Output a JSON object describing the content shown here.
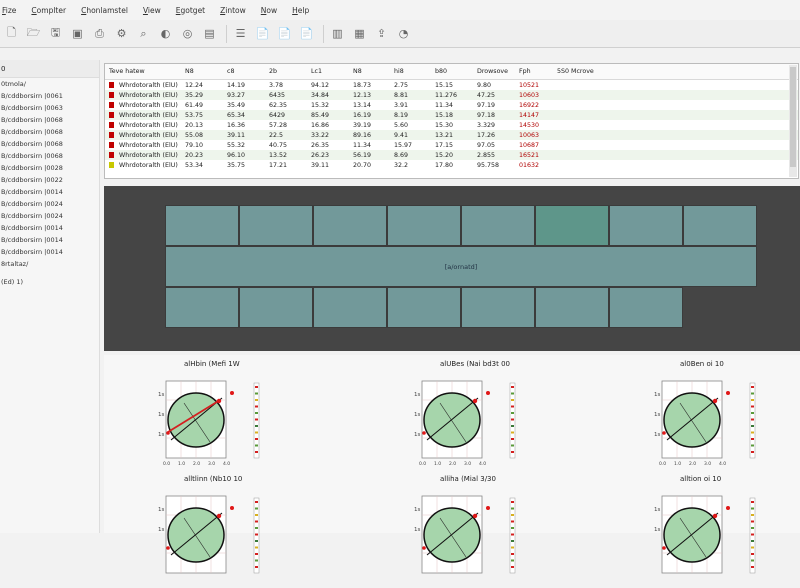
{
  "menu": [
    "Fize",
    "Complter",
    "Chonlamstel",
    "View",
    "Egotget",
    "Zintow",
    "Now",
    "Help"
  ],
  "toolbar_icons": [
    "new-doc-icon",
    "open-doc-icon",
    "save-doc-icon",
    "image-icon",
    "print-icon",
    "settings-icon",
    "zoom-icon",
    "color-icon",
    "target-icon",
    "page-icon",
    "list-icon",
    "doc-a-icon",
    "doc-b-icon",
    "doc-c-icon",
    "camera-icon",
    "chart-icon",
    "export-icon",
    "gauge-icon"
  ],
  "sidebar": {
    "header": "0",
    "items": [
      "0tmola/",
      "B/cddborsirn |0061",
      "B/cddborsirn |0063",
      "B/cddborsirn |0068",
      "B/cddborsirn |0068",
      "B/cddborsirn |0068",
      "B/cddborsirn |0068",
      "B/cddborsirn |0028",
      "B/cddborsirn |0022",
      "B/cddborsirn |0014",
      "B/cddborsirn |0024",
      "B/cddborsirn |0024",
      "B/cddborsirn |0014",
      "B/cddborsirn |0014",
      "B/cddborsirn |0014",
      "8rtaltaz/"
    ],
    "footer": "(Ed) 1)"
  },
  "table": {
    "headers": [
      "Teve hatew",
      "N8",
      "c8",
      "2b",
      "Lc1",
      "N8",
      "hi8",
      "b80",
      "Drowsove",
      "Fph",
      "5S0 Mcrove"
    ],
    "rows": [
      {
        "swatch": "#c00000",
        "name": "Whrdotoralth (ElU)",
        "v": [
          "12.24",
          "14.19",
          "3.78",
          "94.12",
          "18.73",
          "2.75",
          "15.15",
          "9.80",
          "10521"
        ]
      },
      {
        "swatch": "#c00000",
        "name": "Whrdotoralth (ElU)",
        "v": [
          "35.29",
          "93.27",
          "6435",
          "34.84",
          "12.13",
          "8.81",
          "11.276",
          "47.25",
          "10603"
        ]
      },
      {
        "swatch": "#c00000",
        "name": "Whrdotoralth (ElU)",
        "v": [
          "61.49",
          "35.49",
          "62.35",
          "15.32",
          "13.14",
          "3.91",
          "11.34",
          "97.19",
          "16922"
        ]
      },
      {
        "swatch": "#c00000",
        "name": "Whrdotoralth (ElU)",
        "v": [
          "53.75",
          "65.34",
          "6429",
          "85.49",
          "16.19",
          "8.19",
          "15.18",
          "97.18",
          "14147"
        ]
      },
      {
        "swatch": "#c00000",
        "name": "Whrdotoralth (ElU)",
        "v": [
          "20.13",
          "16.36",
          "57.28",
          "16.86",
          "39.19",
          "5.60",
          "15.30",
          "3.329",
          "14530"
        ]
      },
      {
        "swatch": "#c00000",
        "name": "Whrdotoralth (ElU)",
        "v": [
          "55.08",
          "39.11",
          "22.5",
          "33.22",
          "89.16",
          "9.41",
          "13.21",
          "17.26",
          "10063"
        ]
      },
      {
        "swatch": "#c00000",
        "name": "Whrdotoralth (ElU)",
        "v": [
          "79.10",
          "55.32",
          "40.75",
          "26.35",
          "11.34",
          "15.97",
          "17.15",
          "97.05",
          "10687"
        ]
      },
      {
        "swatch": "#c00000",
        "name": "Whrdotoralth (ElU)",
        "v": [
          "20.23",
          "96.10",
          "13.52",
          "26.23",
          "56.19",
          "8.69",
          "15.20",
          "2.855",
          "16521"
        ]
      },
      {
        "swatch": "#c8c800",
        "name": "Whrdotoralth (ElU)",
        "v": [
          "53.34",
          "35.75",
          "17.21",
          "39.11",
          "20.70",
          "32.2",
          "17.80",
          "95.758",
          "01632"
        ]
      }
    ]
  },
  "layout": {
    "label": "[a/ornatd]",
    "colors": {
      "tile": "#72999a",
      "active": "#5e968a",
      "bg": "#454545"
    }
  },
  "plots": [
    {
      "title": "alHbin (Mefi 1W",
      "ticks_y": [
        "1s",
        "1s",
        "1s"
      ],
      "ticks_x": [
        "0.0",
        "1.0",
        "2.0",
        "3.0",
        "4.0"
      ]
    },
    {
      "title": "alUBes (Nai bd3t 00",
      "ticks_y": [
        "1s",
        "1s",
        "1s"
      ],
      "ticks_x": [
        "0.0",
        "1.0",
        "2.0",
        "3.0",
        "4.0"
      ]
    },
    {
      "title": "al0Ben oi 10",
      "ticks_y": [
        "1s",
        "1s",
        "1s"
      ],
      "ticks_x": [
        "0.0",
        "1.0",
        "2.0",
        "3.0",
        "4.0"
      ]
    },
    {
      "title": "alltlinn (Nb10 10",
      "ticks_y": [
        "1s",
        "1s"
      ],
      "ticks_x": []
    },
    {
      "title": "alliha (Mial 3/30",
      "ticks_y": [
        "1s",
        "1s"
      ],
      "ticks_x": []
    },
    {
      "title": "alltion oi 10",
      "ticks_y": [
        "1s",
        "1s"
      ],
      "ticks_x": []
    }
  ]
}
